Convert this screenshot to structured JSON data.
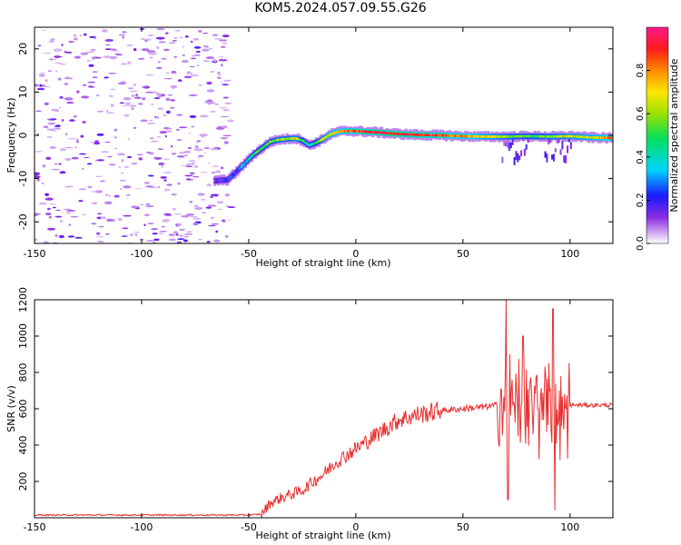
{
  "title": "KOM5.2024.057.09.55.G26",
  "colorbar": {
    "label": "Normalized spectral amplitude",
    "ticks": [
      0.0,
      0.2,
      0.4,
      0.6,
      0.8
    ],
    "tick_labels": [
      "0.0",
      "0.2",
      "0.4",
      "0.6",
      "0.8"
    ],
    "range": [
      0,
      1
    ],
    "colormap": "rainbow (violet-blue-cyan-green-yellow-orange-red-pink)"
  },
  "chart_data": [
    {
      "type": "heatmap",
      "xlabel": "Height of straight line (km)",
      "ylabel": "Frequency (Hz)",
      "xlim": [
        -150,
        120
      ],
      "ylim": [
        -25,
        25
      ],
      "xticks": [
        -150,
        -100,
        -50,
        0,
        50,
        100
      ],
      "xtick_labels": [
        "-150",
        "-100",
        "-50",
        "0",
        "50",
        "100"
      ],
      "yticks": [
        -20,
        -10,
        0,
        10,
        20
      ],
      "ytick_labels": [
        "-20",
        "-10",
        "0",
        "10",
        "20"
      ],
      "noise_region_x": [
        -150,
        -58
      ],
      "ridge": {
        "x": [
          -66,
          -60,
          -56,
          -52,
          -48,
          -44,
          -40,
          -36,
          -32,
          -28,
          -25,
          -22,
          -19,
          -16,
          -12,
          -8,
          -4,
          0,
          5,
          10,
          20,
          30,
          40,
          50,
          60,
          70,
          80,
          90,
          100,
          110,
          120
        ],
        "freq": [
          -10.5,
          -10.3,
          -8.5,
          -6.5,
          -4.5,
          -3.0,
          -1.5,
          -1.0,
          -0.8,
          -0.7,
          -1.2,
          -2.3,
          -1.8,
          -1.0,
          0.2,
          0.9,
          1.0,
          1.0,
          0.8,
          0.7,
          0.3,
          0.1,
          0.0,
          -0.2,
          -0.3,
          -0.3,
          -0.2,
          -0.3,
          -0.2,
          -0.5,
          -0.6
        ],
        "amplitude": [
          0.15,
          0.2,
          0.25,
          0.35,
          0.45,
          0.5,
          0.55,
          0.6,
          0.6,
          0.65,
          0.5,
          0.35,
          0.45,
          0.6,
          0.7,
          0.75,
          0.8,
          0.85,
          0.9,
          0.95,
          0.95,
          0.9,
          0.85,
          0.8,
          0.7,
          0.6,
          0.55,
          0.6,
          0.65,
          0.7,
          0.8
        ]
      }
    },
    {
      "type": "line",
      "xlabel": "Height of straight line (km)",
      "ylabel": "SNR (v/v)",
      "xlim": [
        -150,
        120
      ],
      "ylim": [
        0,
        1200
      ],
      "xticks": [
        -150,
        -100,
        -50,
        0,
        50,
        100
      ],
      "xtick_labels": [
        "-150",
        "-100",
        "-50",
        "0",
        "50",
        "100"
      ],
      "yticks": [
        200,
        400,
        600,
        800,
        1000,
        1200
      ],
      "ytick_labels": [
        "200",
        "400",
        "600",
        "800",
        "1000",
        "1200"
      ],
      "series": [
        {
          "color": "#e83030",
          "x": [
            -150,
            -100,
            -50,
            -44,
            -40,
            -35,
            -30,
            -25,
            -20,
            -15,
            -10,
            -5,
            0,
            5,
            10,
            15,
            20,
            30,
            40,
            50,
            60,
            66,
            68,
            70,
            71,
            72,
            75,
            78,
            80,
            85,
            90,
            92,
            93,
            95,
            98,
            100,
            110,
            120
          ],
          "y": [
            15,
            15,
            15,
            20,
            80,
            110,
            130,
            150,
            200,
            240,
            300,
            340,
            380,
            420,
            460,
            500,
            540,
            570,
            590,
            600,
            610,
            620,
            700,
            1200,
            100,
            900,
            700,
            1000,
            500,
            600,
            850,
            1150,
            40,
            700,
            600,
            620,
            620,
            620
          ]
        }
      ]
    }
  ]
}
